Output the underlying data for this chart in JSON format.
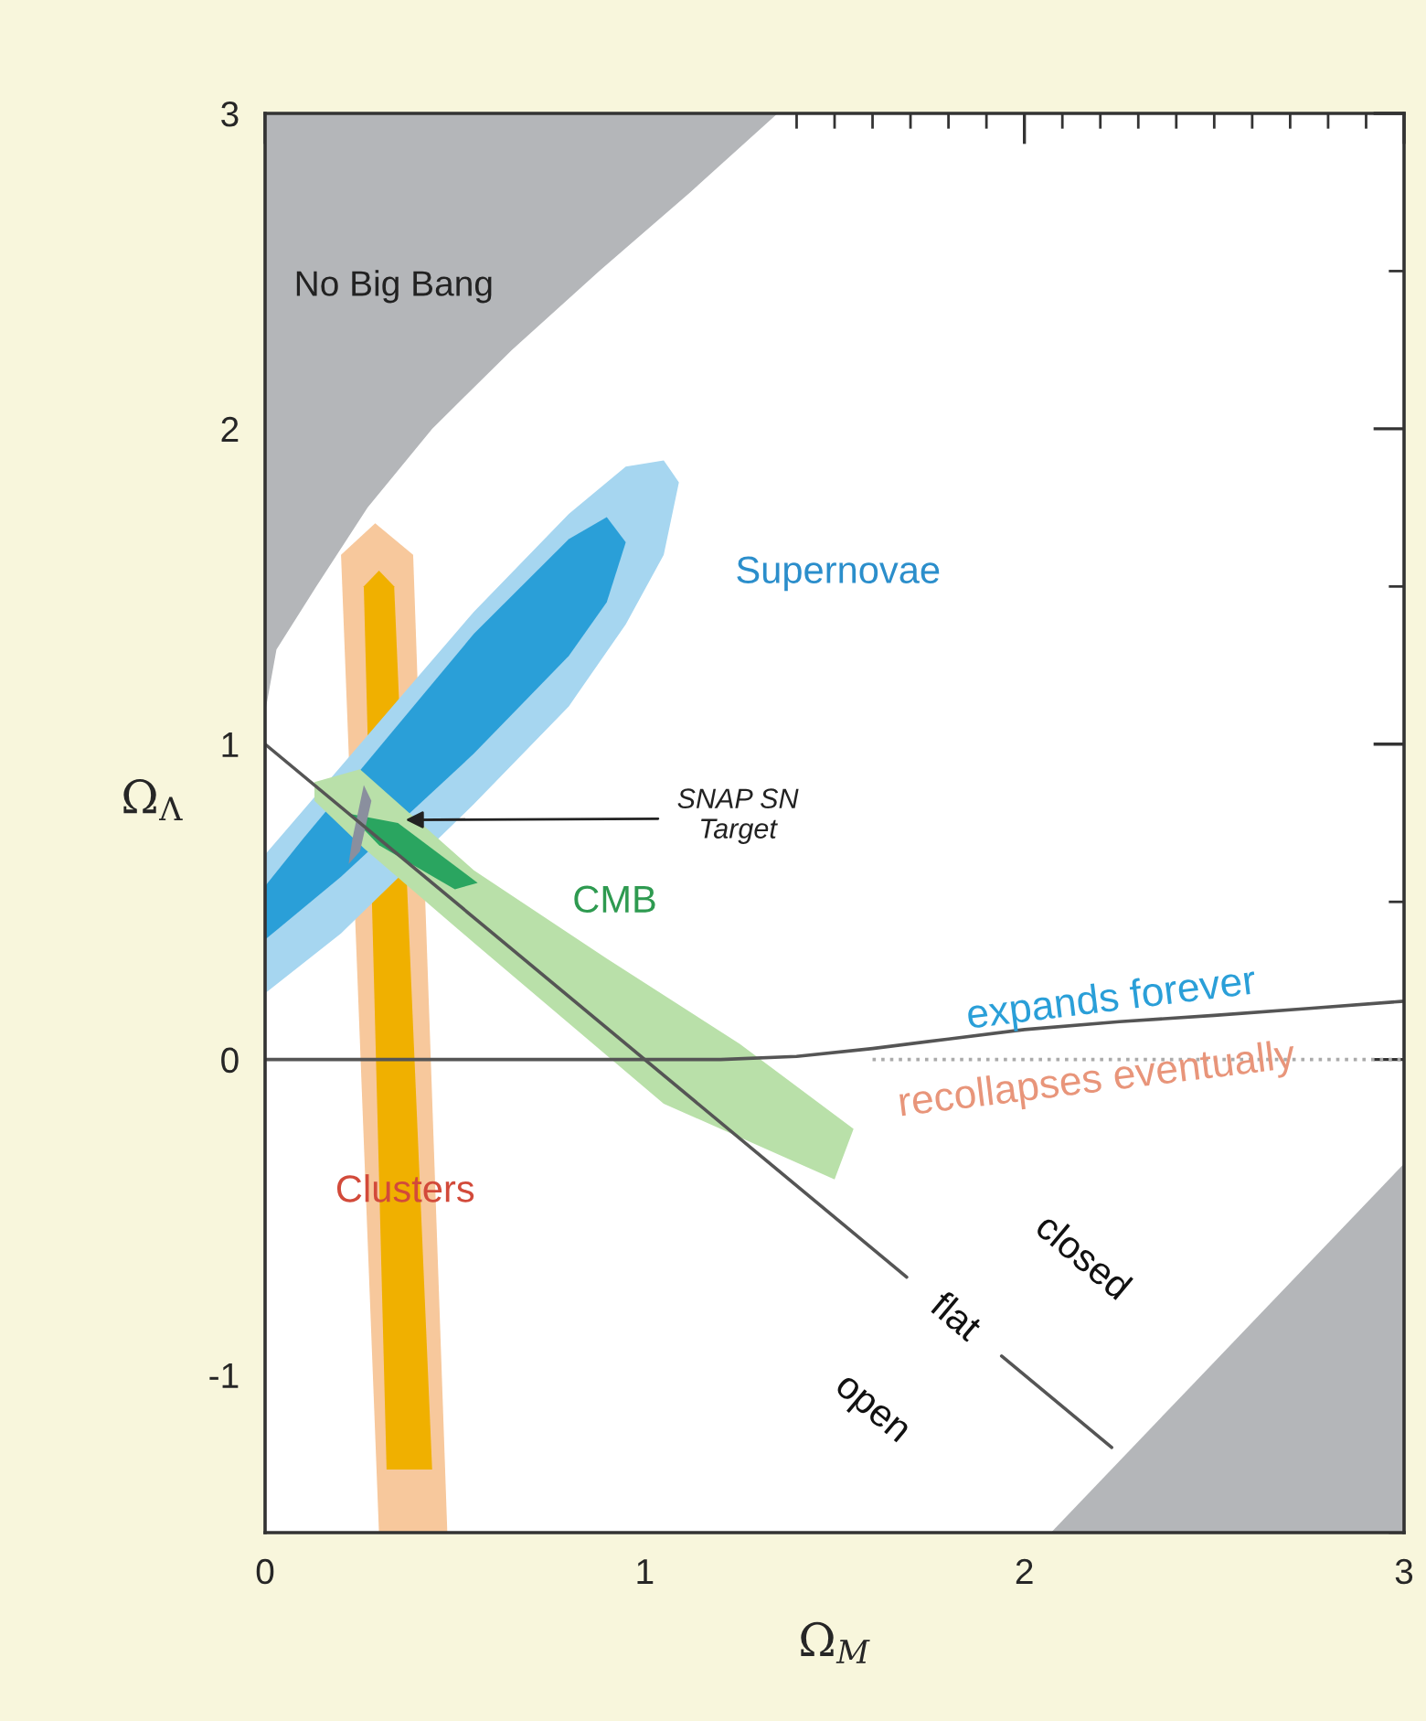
{
  "chart_data": {
    "type": "area",
    "xlabel": "Ω$_{M}$",
    "ylabel": "Ω$_{Λ}$",
    "xlim": [
      0,
      3
    ],
    "ylim": [
      -1.5,
      3
    ],
    "xticks": [
      0,
      {
        "value": 0.1,
        "label": null
      },
      {
        "value": 0.2,
        "label": null
      },
      {
        "value": 0.3,
        "label": null
      },
      {
        "value": 0.4,
        "label": null
      },
      {
        "value": 0.5,
        "label": null
      },
      {
        "value": 0.6,
        "label": null
      },
      {
        "value": 0.7,
        "label": null
      },
      {
        "value": 0.8,
        "label": null
      },
      {
        "value": 0.9,
        "label": null
      },
      1,
      {
        "value": 1.1,
        "label": null
      },
      {
        "value": 1.2,
        "label": null
      },
      {
        "value": 1.3,
        "label": null
      },
      {
        "value": 1.4,
        "label": null
      },
      {
        "value": 1.5,
        "label": null
      },
      {
        "value": 1.6,
        "label": null
      },
      {
        "value": 1.7,
        "label": null
      },
      {
        "value": 1.8,
        "label": null
      },
      {
        "value": 1.9,
        "label": null
      },
      2,
      {
        "value": 2.1,
        "label": null
      },
      {
        "value": 2.2,
        "label": null
      },
      {
        "value": 2.3,
        "label": null
      },
      {
        "value": 2.4,
        "label": null
      },
      {
        "value": 2.5,
        "label": null
      },
      {
        "value": 2.6,
        "label": null
      },
      {
        "value": 2.7,
        "label": null
      },
      {
        "value": 2.8,
        "label": null
      },
      {
        "value": 2.9,
        "label": null
      },
      3
    ],
    "yticks": [
      {
        "value": -1.5,
        "label": null
      },
      -1,
      {
        "value": -0.5,
        "label": null
      },
      0,
      {
        "value": 0.5,
        "label": null
      },
      1,
      {
        "value": 1.5,
        "label": null
      },
      2,
      {
        "value": 2.5,
        "label": null
      },
      3
    ],
    "series": [
      {
        "color": "#b4b6b9",
        "x": [
          0,
          0,
          0.03,
          0.135,
          0.27,
          0.44,
          0.65,
          0.88,
          1.12,
          1.35
        ],
        "values": [
          3,
          1.1,
          1.3,
          1.5,
          1.75,
          2.0,
          2.25,
          2.5,
          2.75,
          3
        ]
      },
      {
        "color": "#b4b6b9",
        "x": [
          2.07,
          3,
          3
        ],
        "values": [
          -1.5,
          -0.33,
          -1.5
        ]
      },
      {
        "color": "#f7c89c",
        "x": [
          0.2,
          0.3,
          0.48,
          0.39,
          0.29
        ],
        "values": [
          1.6,
          -1.5,
          -1.5,
          1.6,
          1.7
        ]
      },
      {
        "color": "#f0b000",
        "x": [
          0.26,
          0.3,
          0.34,
          0.44,
          0.32
        ],
        "values": [
          1.5,
          1.55,
          1.5,
          -1.3,
          -1.3
        ]
      },
      {
        "color": "#a6d6f0",
        "x": [
          0,
          0.2,
          0.55,
          0.8,
          0.95,
          1.05,
          1.09,
          1.05,
          0.95,
          0.8,
          0.55,
          0.1,
          0
        ],
        "values": [
          0.21,
          0.4,
          0.81,
          1.12,
          1.38,
          1.6,
          1.83,
          1.9,
          1.88,
          1.73,
          1.42,
          0.79,
          0.65
        ]
      },
      {
        "color": "#2a9fd8",
        "x": [
          0,
          0.2,
          0.55,
          0.8,
          0.9,
          0.95,
          0.9,
          0.8,
          0.55,
          0.1,
          0
        ],
        "values": [
          0.38,
          0.58,
          0.97,
          1.28,
          1.45,
          1.64,
          1.72,
          1.65,
          1.35,
          0.7,
          0.55
        ]
      },
      {
        "color": "#b9e0a9",
        "x": [
          0.13,
          0.25,
          0.55,
          0.9,
          1.25,
          1.55,
          1.5,
          1.05,
          0.55,
          0.26,
          0.13
        ],
        "values": [
          0.88,
          0.92,
          0.6,
          0.32,
          0.05,
          -0.22,
          -0.38,
          -0.14,
          0.37,
          0.67,
          0.82
        ]
      },
      {
        "color": "#2aa560",
        "x": [
          0.22,
          0.35,
          0.56,
          0.5,
          0.3
        ],
        "values": [
          0.78,
          0.75,
          0.56,
          0.54,
          0.68
        ]
      },
      {
        "color": "#8a8f9e",
        "x": [
          0.26,
          0.28,
          0.25,
          0.22,
          0.23
        ],
        "values": [
          0.87,
          0.82,
          0.66,
          0.62,
          0.7
        ]
      },
      {
        "type": "line",
        "color": "#555555",
        "line_style": "solid",
        "x": [
          0,
          1.69,
          1.8,
          1.94,
          2.23
        ],
        "values": [
          1,
          -0.69,
          null,
          -0.94,
          -1.23
        ]
      },
      {
        "type": "line",
        "color": "#555555",
        "line_style": "solid",
        "x": [
          0,
          1.2,
          1.4,
          1.6,
          1.8,
          2.0,
          2.25,
          2.5,
          2.75,
          3
        ],
        "values": [
          0,
          0,
          0.01,
          0.035,
          0.065,
          0.095,
          0.12,
          0.14,
          0.162,
          0.185
        ]
      },
      {
        "type": "line",
        "color": "#aaaaaa",
        "line_style": "dotted",
        "x": [
          1.6,
          3
        ],
        "values": [
          0,
          0
        ]
      }
    ],
    "annotations": [
      "No Big Bang",
      "Supernovae",
      {
        "text": "SNAP SN\nTarget",
        "x": 0.37,
        "y": 0.76
      },
      "CMB",
      "expands forever",
      "recollapses eventually",
      "Clusters",
      "closed",
      "flat",
      "open"
    ]
  }
}
